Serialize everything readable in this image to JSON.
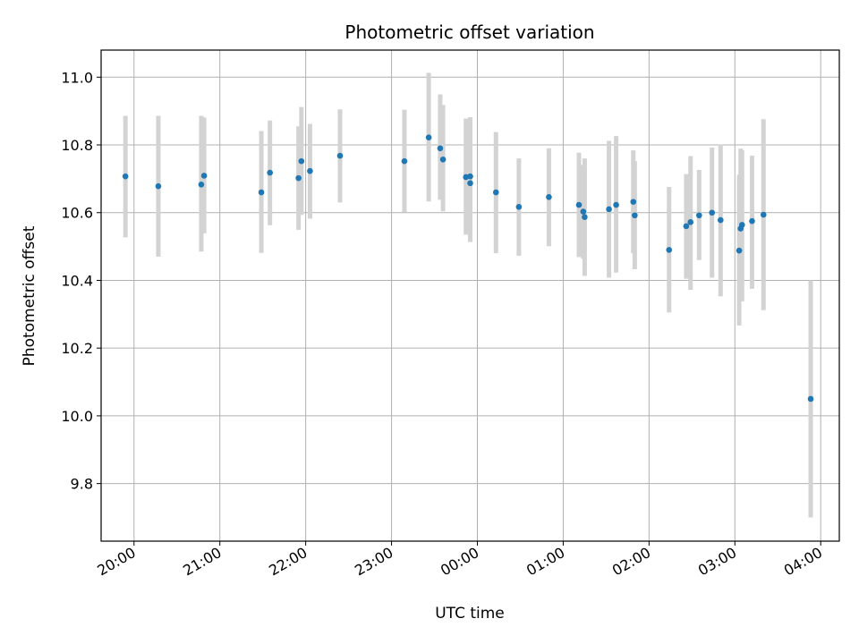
{
  "chart_data": {
    "type": "scatter",
    "title": "Photometric offset variation",
    "xlabel": "UTC time",
    "ylabel": "Photometric offset",
    "xlim": [
      "19:37",
      "04:13"
    ],
    "ylim": [
      9.63,
      11.08
    ],
    "grid": true,
    "x_ticks": [
      "20:00",
      "21:00",
      "22:00",
      "23:00",
      "00:00",
      "01:00",
      "02:00",
      "03:00",
      "04:00"
    ],
    "y_ticks": [
      9.8,
      10.0,
      10.2,
      10.4,
      10.6,
      10.8,
      11.0
    ],
    "y_tick_labels": [
      "9.8",
      "10.0",
      "10.2",
      "10.4",
      "10.6",
      "10.8",
      "11.0"
    ],
    "colors": {
      "marker": "#1f77b4",
      "errorbar": "#d3d3d3",
      "grid": "#b0b0b0"
    },
    "series": [
      {
        "x": [
          "19:54",
          "20:17",
          "20:47",
          "20:49",
          "21:29",
          "21:35",
          "21:55",
          "21:57",
          "22:03",
          "22:24",
          "23:09",
          "23:26",
          "23:34",
          "23:36",
          "23:52",
          "23:55",
          "23:55",
          "00:13",
          "00:29",
          "00:50",
          "01:11",
          "01:14",
          "01:15",
          "01:32",
          "01:37",
          "01:49",
          "01:50",
          "02:14",
          "02:26",
          "02:29",
          "02:35",
          "02:44",
          "02:50",
          "03:03",
          "03:04",
          "03:05",
          "03:12",
          "03:20",
          "03:53"
        ],
        "y": [
          10.707,
          10.678,
          10.683,
          10.709,
          10.66,
          10.718,
          10.702,
          10.752,
          10.723,
          10.768,
          10.752,
          10.822,
          10.79,
          10.757,
          10.705,
          10.707,
          10.687,
          10.66,
          10.617,
          10.646,
          10.623,
          10.603,
          10.587,
          10.61,
          10.623,
          10.632,
          10.592,
          10.49,
          10.56,
          10.572,
          10.592,
          10.6,
          10.578,
          10.488,
          10.553,
          10.564,
          10.575,
          10.594,
          10.05
        ],
        "yerr_low": [
          10.527,
          10.47,
          10.485,
          10.539,
          10.481,
          10.563,
          10.549,
          10.593,
          10.582,
          10.63,
          10.601,
          10.633,
          10.638,
          10.604,
          10.535,
          10.555,
          10.513,
          10.48,
          10.473,
          10.501,
          10.469,
          10.464,
          10.413,
          10.408,
          10.423,
          10.48,
          10.433,
          10.305,
          10.405,
          10.372,
          10.46,
          10.408,
          10.353,
          10.267,
          10.353,
          10.338,
          10.375,
          10.312,
          9.7
        ],
        "yerr_high": [
          10.886,
          10.886,
          10.886,
          10.881,
          10.841,
          10.872,
          10.855,
          10.912,
          10.862,
          10.905,
          10.904,
          11.013,
          10.949,
          10.918,
          10.878,
          10.882,
          10.857,
          10.838,
          10.76,
          10.79,
          10.777,
          10.741,
          10.76,
          10.812,
          10.826,
          10.784,
          10.752,
          10.676,
          10.714,
          10.767,
          10.726,
          10.792,
          10.801,
          10.712,
          10.789,
          10.785,
          10.768,
          10.876,
          10.4
        ]
      }
    ]
  }
}
